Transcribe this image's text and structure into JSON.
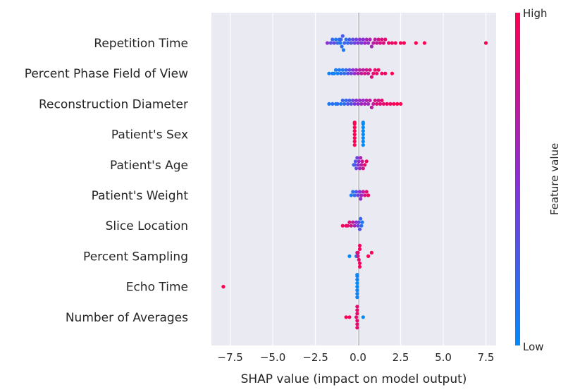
{
  "chart_data": {
    "type": "scatter",
    "subtype": "shap-beeswarm",
    "title": "",
    "xlabel": "SHAP value (impact on model output)",
    "xlim": [
      -8.6,
      8.1
    ],
    "xticks": [
      -7.5,
      -5.0,
      -2.5,
      0.0,
      2.5,
      5.0,
      7.5
    ],
    "xtick_labels": [
      "−7.5",
      "−5.0",
      "−2.5",
      "0.0",
      "2.5",
      "5.0",
      "7.5"
    ],
    "grid": true,
    "colorbar": {
      "title": "Feature value",
      "high_label": "High",
      "low_label": "Low",
      "low_color": "#008bfb",
      "mid_color": "#8b2fd6",
      "high_color": "#ff0052"
    },
    "features": [
      {
        "name": "Repetition Time",
        "points": [
          [
            -1.8,
            0.5
          ],
          [
            -1.6,
            0.3
          ],
          [
            -1.5,
            0.2
          ],
          [
            -1.4,
            0.35
          ],
          [
            -1.3,
            0.1
          ],
          [
            -1.2,
            0.2
          ],
          [
            -1.1,
            0.15
          ],
          [
            -1.05,
            0.1
          ],
          [
            -1.0,
            0.2
          ],
          [
            -0.95,
            0.15
          ],
          [
            -0.9,
            0.25
          ],
          [
            -0.85,
            0.1
          ],
          [
            -0.8,
            0.2
          ],
          [
            -0.7,
            0.15
          ],
          [
            -0.6,
            0.2
          ],
          [
            -0.5,
            0.25
          ],
          [
            -0.4,
            0.3
          ],
          [
            -0.3,
            0.35
          ],
          [
            -0.2,
            0.4
          ],
          [
            -0.1,
            0.4
          ],
          [
            0.0,
            0.45
          ],
          [
            0.1,
            0.5
          ],
          [
            0.2,
            0.45
          ],
          [
            0.3,
            0.5
          ],
          [
            0.4,
            0.55
          ],
          [
            0.5,
            0.6
          ],
          [
            0.6,
            0.55
          ],
          [
            0.7,
            0.65
          ],
          [
            0.8,
            0.6
          ],
          [
            0.9,
            0.7
          ],
          [
            1.0,
            0.7
          ],
          [
            1.1,
            0.75
          ],
          [
            1.2,
            0.8
          ],
          [
            1.3,
            0.8
          ],
          [
            1.4,
            0.85
          ],
          [
            1.5,
            0.85
          ],
          [
            1.6,
            0.9
          ],
          [
            1.8,
            0.9
          ],
          [
            2.0,
            0.95
          ],
          [
            2.2,
            0.95
          ],
          [
            2.5,
            0.95
          ],
          [
            2.7,
            1.0
          ],
          [
            3.4,
            1.0
          ],
          [
            3.9,
            1.0
          ],
          [
            7.5,
            1.0
          ]
        ]
      },
      {
        "name": "Percent Phase Field of View",
        "points": [
          [
            -1.7,
            0.05
          ],
          [
            -1.5,
            0.1
          ],
          [
            -1.4,
            0.05
          ],
          [
            -1.3,
            0.1
          ],
          [
            -1.2,
            0.05
          ],
          [
            -1.1,
            0.1
          ],
          [
            -1.0,
            0.15
          ],
          [
            -0.9,
            0.1
          ],
          [
            -0.8,
            0.15
          ],
          [
            -0.7,
            0.2
          ],
          [
            -0.6,
            0.3
          ],
          [
            -0.5,
            0.35
          ],
          [
            -0.4,
            0.4
          ],
          [
            -0.3,
            0.5
          ],
          [
            -0.2,
            0.55
          ],
          [
            -0.1,
            0.6
          ],
          [
            0.0,
            0.65
          ],
          [
            0.1,
            0.7
          ],
          [
            0.2,
            0.75
          ],
          [
            0.3,
            0.7
          ],
          [
            0.4,
            0.8
          ],
          [
            0.5,
            0.8
          ],
          [
            0.6,
            0.75
          ],
          [
            0.7,
            0.85
          ],
          [
            0.8,
            0.85
          ],
          [
            0.9,
            0.9
          ],
          [
            1.0,
            0.9
          ],
          [
            1.1,
            0.9
          ],
          [
            1.2,
            0.95
          ],
          [
            1.4,
            0.95
          ],
          [
            1.6,
            0.95
          ],
          [
            2.0,
            1.0
          ]
        ]
      },
      {
        "name": "Reconstruction Diameter",
        "points": [
          [
            -1.7,
            0.1
          ],
          [
            -1.5,
            0.15
          ],
          [
            -1.3,
            0.1
          ],
          [
            -1.2,
            0.15
          ],
          [
            -1.0,
            0.1
          ],
          [
            -0.9,
            0.2
          ],
          [
            -0.8,
            0.15
          ],
          [
            -0.7,
            0.2
          ],
          [
            -0.6,
            0.3
          ],
          [
            -0.5,
            0.25
          ],
          [
            -0.4,
            0.3
          ],
          [
            -0.3,
            0.4
          ],
          [
            -0.2,
            0.45
          ],
          [
            -0.1,
            0.5
          ],
          [
            0.0,
            0.5
          ],
          [
            0.1,
            0.55
          ],
          [
            0.2,
            0.6
          ],
          [
            0.3,
            0.55
          ],
          [
            0.4,
            0.6
          ],
          [
            0.5,
            0.65
          ],
          [
            0.6,
            0.6
          ],
          [
            0.7,
            0.7
          ],
          [
            0.8,
            0.7
          ],
          [
            0.9,
            0.75
          ],
          [
            1.0,
            0.8
          ],
          [
            1.1,
            0.85
          ],
          [
            1.2,
            0.8
          ],
          [
            1.3,
            0.85
          ],
          [
            1.4,
            0.9
          ],
          [
            1.5,
            0.9
          ],
          [
            1.7,
            0.95
          ],
          [
            1.9,
            0.95
          ],
          [
            2.1,
            1.0
          ],
          [
            2.3,
            1.0
          ],
          [
            2.5,
            1.0
          ]
        ]
      },
      {
        "name": "Patient's Sex",
        "points": [
          [
            -0.2,
            1.0
          ],
          [
            -0.2,
            1.0
          ],
          [
            -0.2,
            1.0
          ],
          [
            -0.2,
            1.0
          ],
          [
            -0.2,
            1.0
          ],
          [
            -0.2,
            1.0
          ],
          [
            -0.2,
            1.0
          ],
          [
            -0.2,
            1.0
          ],
          [
            0.3,
            0.0
          ],
          [
            0.3,
            0.0
          ],
          [
            0.3,
            0.0
          ],
          [
            0.3,
            0.0
          ],
          [
            0.3,
            0.0
          ],
          [
            0.3,
            0.0
          ],
          [
            0.3,
            0.0
          ],
          [
            0.3,
            0.0
          ]
        ]
      },
      {
        "name": "Patient's Age",
        "points": [
          [
            -0.25,
            0.2
          ],
          [
            -0.2,
            0.25
          ],
          [
            -0.15,
            0.3
          ],
          [
            -0.1,
            0.35
          ],
          [
            -0.05,
            0.4
          ],
          [
            0.0,
            0.5
          ],
          [
            0.05,
            0.55
          ],
          [
            0.1,
            0.6
          ],
          [
            0.15,
            0.65
          ],
          [
            0.2,
            0.7
          ],
          [
            0.25,
            0.75
          ],
          [
            0.3,
            0.8
          ],
          [
            0.4,
            0.9
          ],
          [
            0.5,
            0.95
          ]
        ]
      },
      {
        "name": "Patient's Weight",
        "points": [
          [
            -0.4,
            0.1
          ],
          [
            -0.3,
            0.15
          ],
          [
            -0.2,
            0.2
          ],
          [
            -0.1,
            0.3
          ],
          [
            0.0,
            0.4
          ],
          [
            0.1,
            0.5
          ],
          [
            0.15,
            0.55
          ],
          [
            0.2,
            0.6
          ],
          [
            0.3,
            0.7
          ],
          [
            0.4,
            0.8
          ],
          [
            0.5,
            0.9
          ],
          [
            0.6,
            0.95
          ]
        ]
      },
      {
        "name": "Slice Location",
        "points": [
          [
            -0.9,
            0.95
          ],
          [
            -0.7,
            0.95
          ],
          [
            -0.6,
            0.9
          ],
          [
            -0.5,
            0.85
          ],
          [
            -0.4,
            0.8
          ],
          [
            -0.3,
            0.7
          ],
          [
            -0.2,
            0.6
          ],
          [
            -0.1,
            0.5
          ],
          [
            0.0,
            0.4
          ],
          [
            0.05,
            0.35
          ],
          [
            0.1,
            0.3
          ],
          [
            0.15,
            0.2
          ],
          [
            0.2,
            0.15
          ],
          [
            0.25,
            0.1
          ]
        ]
      },
      {
        "name": "Percent Sampling",
        "points": [
          [
            -0.5,
            0.0
          ],
          [
            -0.1,
            0.1
          ],
          [
            -0.05,
            0.6
          ],
          [
            0.0,
            0.8
          ],
          [
            0.0,
            0.9
          ],
          [
            0.05,
            0.9
          ],
          [
            0.1,
            0.95
          ],
          [
            0.1,
            0.95
          ],
          [
            0.1,
            0.95
          ],
          [
            0.1,
            0.95
          ],
          [
            0.6,
            1.0
          ],
          [
            0.8,
            1.0
          ]
        ]
      },
      {
        "name": "Echo Time",
        "points": [
          [
            -0.05,
            0.0
          ],
          [
            -0.05,
            0.0
          ],
          [
            -0.05,
            0.05
          ],
          [
            -0.05,
            0.05
          ],
          [
            -0.05,
            0.05
          ],
          [
            -0.05,
            0.05
          ],
          [
            -0.05,
            0.05
          ],
          [
            -0.05,
            0.05
          ],
          [
            -7.9,
            1.0
          ]
        ]
      },
      {
        "name": "Number of Averages",
        "points": [
          [
            -0.7,
            1.0
          ],
          [
            -0.5,
            0.95
          ],
          [
            -0.1,
            0.9
          ],
          [
            -0.05,
            0.9
          ],
          [
            -0.05,
            0.9
          ],
          [
            -0.05,
            0.9
          ],
          [
            -0.05,
            0.9
          ],
          [
            -0.05,
            0.9
          ],
          [
            -0.05,
            0.9
          ],
          [
            0.3,
            0.0
          ]
        ]
      }
    ]
  }
}
